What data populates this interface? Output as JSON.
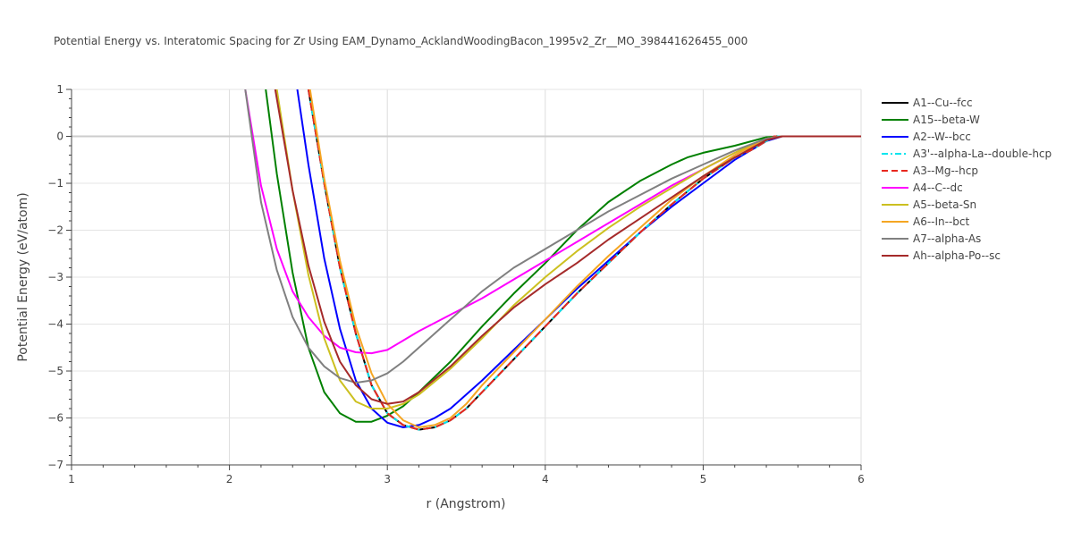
{
  "chart_data": {
    "type": "line",
    "title": "Potential Energy vs. Interatomic Spacing for Zr Using EAM_Dynamo_AcklandWoodingBacon_1995v2_Zr__MO_398441626455_000",
    "xlabel": "r (Angstrom)",
    "ylabel": "Potential Energy (eV/atom)",
    "xlim": [
      1,
      6
    ],
    "ylim": [
      -7,
      1
    ],
    "x_ticks": [
      "1",
      "2",
      "3",
      "4",
      "5",
      "6"
    ],
    "y_ticks": [
      "1",
      "0",
      "−1",
      "−2",
      "−3",
      "−4",
      "−5",
      "−6",
      "−7"
    ],
    "x_tick_values": [
      1,
      2,
      3,
      4,
      5,
      6
    ],
    "y_tick_values": [
      1,
      0,
      -1,
      -2,
      -3,
      -4,
      -5,
      -6,
      -7
    ],
    "grid": true,
    "legend_position": "right",
    "series": [
      {
        "name": "A1--Cu--fcc",
        "color": "#000000",
        "dash": "solid",
        "points": [
          [
            2.5,
            1
          ],
          [
            2.6,
            -1.0
          ],
          [
            2.7,
            -2.8
          ],
          [
            2.8,
            -4.2
          ],
          [
            2.9,
            -5.3
          ],
          [
            3.0,
            -5.9
          ],
          [
            3.1,
            -6.15
          ],
          [
            3.2,
            -6.25
          ],
          [
            3.3,
            -6.2
          ],
          [
            3.4,
            -6.05
          ],
          [
            3.5,
            -5.8
          ],
          [
            3.6,
            -5.45
          ],
          [
            3.8,
            -4.75
          ],
          [
            4.0,
            -4.05
          ],
          [
            4.2,
            -3.35
          ],
          [
            4.4,
            -2.7
          ],
          [
            4.6,
            -2.05
          ],
          [
            4.8,
            -1.45
          ],
          [
            5.0,
            -0.9
          ],
          [
            5.2,
            -0.45
          ],
          [
            5.3,
            -0.3
          ],
          [
            5.45,
            0
          ],
          [
            6.0,
            0
          ]
        ]
      },
      {
        "name": "A15--beta-W",
        "color": "#008000",
        "dash": "solid",
        "points": [
          [
            2.23,
            1
          ],
          [
            2.3,
            -0.8
          ],
          [
            2.4,
            -2.9
          ],
          [
            2.5,
            -4.5
          ],
          [
            2.6,
            -5.45
          ],
          [
            2.7,
            -5.9
          ],
          [
            2.8,
            -6.08
          ],
          [
            2.9,
            -6.08
          ],
          [
            3.0,
            -5.95
          ],
          [
            3.1,
            -5.75
          ],
          [
            3.2,
            -5.45
          ],
          [
            3.4,
            -4.8
          ],
          [
            3.6,
            -4.05
          ],
          [
            3.8,
            -3.35
          ],
          [
            4.0,
            -2.7
          ],
          [
            4.2,
            -2.0
          ],
          [
            4.4,
            -1.4
          ],
          [
            4.6,
            -0.95
          ],
          [
            4.8,
            -0.6
          ],
          [
            4.9,
            -0.45
          ],
          [
            5.0,
            -0.35
          ],
          [
            5.2,
            -0.2
          ],
          [
            5.4,
            -0.02
          ],
          [
            5.5,
            0
          ],
          [
            6.0,
            0
          ]
        ]
      },
      {
        "name": "A2--W--bcc",
        "color": "#0000ff",
        "dash": "solid",
        "points": [
          [
            2.43,
            1
          ],
          [
            2.5,
            -0.6
          ],
          [
            2.6,
            -2.6
          ],
          [
            2.7,
            -4.1
          ],
          [
            2.8,
            -5.2
          ],
          [
            2.9,
            -5.8
          ],
          [
            3.0,
            -6.1
          ],
          [
            3.1,
            -6.2
          ],
          [
            3.2,
            -6.15
          ],
          [
            3.3,
            -6.0
          ],
          [
            3.4,
            -5.8
          ],
          [
            3.5,
            -5.5
          ],
          [
            3.6,
            -5.2
          ],
          [
            3.8,
            -4.55
          ],
          [
            4.0,
            -3.9
          ],
          [
            4.2,
            -3.25
          ],
          [
            4.4,
            -2.65
          ],
          [
            4.6,
            -2.05
          ],
          [
            4.8,
            -1.5
          ],
          [
            5.0,
            -1.0
          ],
          [
            5.2,
            -0.5
          ],
          [
            5.4,
            -0.1
          ],
          [
            5.5,
            0
          ],
          [
            6.0,
            0
          ]
        ]
      },
      {
        "name": "A3'--alpha-La--double-hcp",
        "color": "#00e5ee",
        "dash": "dashdot",
        "points": [
          [
            2.5,
            1
          ],
          [
            2.6,
            -1.0
          ],
          [
            2.7,
            -2.8
          ],
          [
            2.8,
            -4.2
          ],
          [
            2.9,
            -5.3
          ],
          [
            3.0,
            -5.9
          ],
          [
            3.1,
            -6.15
          ],
          [
            3.2,
            -6.25
          ],
          [
            3.3,
            -6.2
          ],
          [
            3.4,
            -6.05
          ],
          [
            3.5,
            -5.8
          ],
          [
            3.6,
            -5.45
          ],
          [
            3.8,
            -4.75
          ],
          [
            4.0,
            -4.05
          ],
          [
            4.2,
            -3.35
          ],
          [
            4.4,
            -2.7
          ],
          [
            4.6,
            -2.05
          ],
          [
            4.8,
            -1.45
          ],
          [
            5.0,
            -0.9
          ],
          [
            5.2,
            -0.45
          ],
          [
            5.3,
            -0.3
          ],
          [
            5.45,
            0
          ],
          [
            6.0,
            0
          ]
        ]
      },
      {
        "name": "A3--Mg--hcp",
        "color": "#e8281e",
        "dash": "dash",
        "points": [
          [
            2.5,
            1
          ],
          [
            2.6,
            -1.0
          ],
          [
            2.7,
            -2.8
          ],
          [
            2.8,
            -4.2
          ],
          [
            2.9,
            -5.3
          ],
          [
            3.0,
            -5.9
          ],
          [
            3.1,
            -6.15
          ],
          [
            3.2,
            -6.25
          ],
          [
            3.3,
            -6.2
          ],
          [
            3.4,
            -6.05
          ],
          [
            3.5,
            -5.8
          ],
          [
            3.6,
            -5.45
          ],
          [
            3.8,
            -4.75
          ],
          [
            4.0,
            -4.05
          ],
          [
            4.2,
            -3.35
          ],
          [
            4.4,
            -2.7
          ],
          [
            4.6,
            -2.05
          ],
          [
            4.8,
            -1.45
          ],
          [
            5.0,
            -0.9
          ],
          [
            5.2,
            -0.45
          ],
          [
            5.3,
            -0.3
          ],
          [
            5.45,
            0
          ],
          [
            6.0,
            0
          ]
        ]
      },
      {
        "name": "A4--C--dc",
        "color": "#ff00ff",
        "dash": "solid",
        "points": [
          [
            2.1,
            1
          ],
          [
            2.2,
            -1.05
          ],
          [
            2.3,
            -2.4
          ],
          [
            2.4,
            -3.3
          ],
          [
            2.5,
            -3.85
          ],
          [
            2.6,
            -4.25
          ],
          [
            2.7,
            -4.5
          ],
          [
            2.8,
            -4.6
          ],
          [
            2.9,
            -4.62
          ],
          [
            3.0,
            -4.55
          ],
          [
            3.1,
            -4.35
          ],
          [
            3.2,
            -4.15
          ],
          [
            3.4,
            -3.8
          ],
          [
            3.6,
            -3.45
          ],
          [
            3.8,
            -3.05
          ],
          [
            4.0,
            -2.65
          ],
          [
            4.2,
            -2.25
          ],
          [
            4.4,
            -1.85
          ],
          [
            4.6,
            -1.45
          ],
          [
            4.8,
            -1.05
          ],
          [
            5.0,
            -0.7
          ],
          [
            5.2,
            -0.35
          ],
          [
            5.4,
            -0.05
          ],
          [
            5.5,
            0
          ],
          [
            6.0,
            0
          ]
        ]
      },
      {
        "name": "A5--beta-Sn",
        "color": "#ccc020",
        "dash": "solid",
        "points": [
          [
            2.3,
            1
          ],
          [
            2.4,
            -1.15
          ],
          [
            2.5,
            -2.95
          ],
          [
            2.6,
            -4.3
          ],
          [
            2.7,
            -5.2
          ],
          [
            2.8,
            -5.65
          ],
          [
            2.9,
            -5.8
          ],
          [
            3.0,
            -5.8
          ],
          [
            3.1,
            -5.7
          ],
          [
            3.2,
            -5.5
          ],
          [
            3.4,
            -4.95
          ],
          [
            3.6,
            -4.3
          ],
          [
            3.8,
            -3.6
          ],
          [
            4.0,
            -3.0
          ],
          [
            4.2,
            -2.45
          ],
          [
            4.4,
            -1.95
          ],
          [
            4.6,
            -1.5
          ],
          [
            4.8,
            -1.1
          ],
          [
            5.0,
            -0.7
          ],
          [
            5.2,
            -0.35
          ],
          [
            5.4,
            -0.05
          ],
          [
            5.5,
            0
          ],
          [
            6.0,
            0
          ]
        ]
      },
      {
        "name": "A6--In--bct",
        "color": "#f5a623",
        "dash": "solid",
        "points": [
          [
            2.51,
            1
          ],
          [
            2.6,
            -0.9
          ],
          [
            2.7,
            -2.65
          ],
          [
            2.8,
            -4.05
          ],
          [
            2.9,
            -5.05
          ],
          [
            3.0,
            -5.7
          ],
          [
            3.1,
            -6.05
          ],
          [
            3.2,
            -6.2
          ],
          [
            3.3,
            -6.15
          ],
          [
            3.4,
            -6.0
          ],
          [
            3.5,
            -5.7
          ],
          [
            3.6,
            -5.3
          ],
          [
            3.8,
            -4.6
          ],
          [
            4.0,
            -3.9
          ],
          [
            4.2,
            -3.2
          ],
          [
            4.4,
            -2.55
          ],
          [
            4.6,
            -1.95
          ],
          [
            4.8,
            -1.35
          ],
          [
            5.0,
            -0.85
          ],
          [
            5.2,
            -0.4
          ],
          [
            5.4,
            -0.05
          ],
          [
            5.5,
            0
          ],
          [
            6.0,
            0
          ]
        ]
      },
      {
        "name": "A7--alpha-As",
        "color": "#808080",
        "dash": "solid",
        "points": [
          [
            2.1,
            1
          ],
          [
            2.2,
            -1.4
          ],
          [
            2.3,
            -2.85
          ],
          [
            2.4,
            -3.85
          ],
          [
            2.5,
            -4.5
          ],
          [
            2.6,
            -4.9
          ],
          [
            2.7,
            -5.15
          ],
          [
            2.8,
            -5.25
          ],
          [
            2.9,
            -5.2
          ],
          [
            3.0,
            -5.05
          ],
          [
            3.1,
            -4.8
          ],
          [
            3.2,
            -4.5
          ],
          [
            3.4,
            -3.9
          ],
          [
            3.6,
            -3.3
          ],
          [
            3.8,
            -2.8
          ],
          [
            4.0,
            -2.4
          ],
          [
            4.2,
            -2.0
          ],
          [
            4.4,
            -1.6
          ],
          [
            4.6,
            -1.25
          ],
          [
            4.8,
            -0.9
          ],
          [
            5.0,
            -0.6
          ],
          [
            5.2,
            -0.3
          ],
          [
            5.4,
            -0.05
          ],
          [
            5.5,
            0
          ],
          [
            6.0,
            0
          ]
        ]
      },
      {
        "name": "Ah--alpha-Po--sc",
        "color": "#a52a2a",
        "dash": "solid",
        "points": [
          [
            2.29,
            1
          ],
          [
            2.4,
            -1.15
          ],
          [
            2.5,
            -2.75
          ],
          [
            2.6,
            -3.95
          ],
          [
            2.7,
            -4.8
          ],
          [
            2.8,
            -5.3
          ],
          [
            2.9,
            -5.6
          ],
          [
            3.0,
            -5.7
          ],
          [
            3.1,
            -5.65
          ],
          [
            3.2,
            -5.45
          ],
          [
            3.4,
            -4.9
          ],
          [
            3.6,
            -4.25
          ],
          [
            3.8,
            -3.65
          ],
          [
            4.0,
            -3.15
          ],
          [
            4.2,
            -2.7
          ],
          [
            4.4,
            -2.2
          ],
          [
            4.6,
            -1.75
          ],
          [
            4.8,
            -1.3
          ],
          [
            5.0,
            -0.85
          ],
          [
            5.2,
            -0.45
          ],
          [
            5.4,
            -0.08
          ],
          [
            5.5,
            0
          ],
          [
            6.0,
            0
          ]
        ]
      }
    ]
  }
}
